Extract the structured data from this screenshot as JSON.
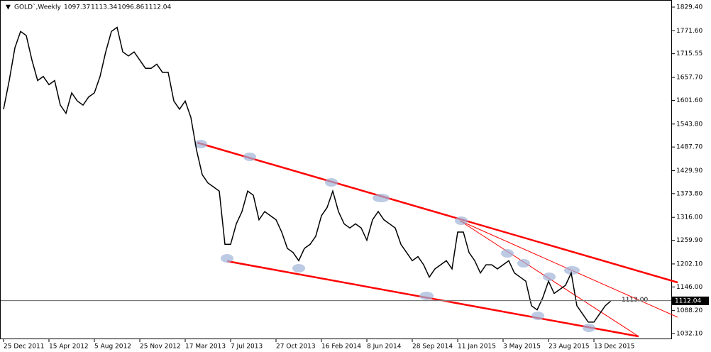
{
  "header": {
    "symbol": "GOLD`,Weekly",
    "open": 1097.37,
    "high": 1113.34,
    "low": 1096.86,
    "close": 1112.04
  },
  "chart_data": {
    "type": "line",
    "categories": [
      "25 Dec 2011",
      null,
      null,
      null,
      null,
      null,
      null,
      null,
      "15 Apr 2012",
      null,
      null,
      null,
      null,
      null,
      null,
      null,
      "5 Aug 2012",
      null,
      null,
      null,
      null,
      null,
      null,
      null,
      "25 Nov 2012",
      null,
      null,
      null,
      null,
      null,
      null,
      null,
      "17 Mar 2013",
      null,
      null,
      null,
      null,
      null,
      null,
      null,
      "7 Jul 2013",
      null,
      null,
      null,
      null,
      null,
      null,
      null,
      "27 Oct 2013",
      null,
      null,
      null,
      null,
      null,
      null,
      null,
      "16 Feb 2014",
      null,
      null,
      null,
      null,
      null,
      null,
      null,
      "8 Jun 2014",
      null,
      null,
      null,
      null,
      null,
      null,
      null,
      "28 Sep 2014",
      null,
      null,
      null,
      null,
      null,
      null,
      null,
      "11 Jan 2015",
      null,
      null,
      null,
      null,
      null,
      null,
      null,
      "3 May 2015",
      null,
      null,
      null,
      null,
      null,
      null,
      null,
      "23 Aug 2015",
      null,
      null,
      null,
      null,
      null,
      null,
      null,
      "13 Dec 2015",
      null,
      null,
      null
    ],
    "series": [
      {
        "name": "GOLD",
        "color": "#000000",
        "values": [
          1580,
          1650,
          1730,
          1770,
          1760,
          1700,
          1650,
          1660,
          1640,
          1650,
          1590,
          1570,
          1620,
          1600,
          1590,
          1610,
          1620,
          1660,
          1720,
          1770,
          1780,
          1720,
          1710,
          1720,
          1700,
          1680,
          1680,
          1690,
          1670,
          1670,
          1600,
          1580,
          1600,
          1560,
          1480,
          1420,
          1400,
          1390,
          1380,
          1250,
          1250,
          1300,
          1330,
          1380,
          1370,
          1310,
          1330,
          1320,
          1310,
          1280,
          1240,
          1230,
          1210,
          1240,
          1250,
          1270,
          1320,
          1340,
          1380,
          1330,
          1300,
          1290,
          1300,
          1290,
          1260,
          1310,
          1330,
          1310,
          1300,
          1290,
          1250,
          1230,
          1210,
          1220,
          1200,
          1170,
          1190,
          1200,
          1210,
          1190,
          1280,
          1280,
          1230,
          1210,
          1180,
          1200,
          1200,
          1190,
          1200,
          1210,
          1180,
          1170,
          1160,
          1100,
          1090,
          1120,
          1160,
          1130,
          1140,
          1150,
          1180,
          1100,
          1080,
          1060,
          1060,
          1080,
          1100,
          1112.04
        ]
      }
    ],
    "ylim": [
      1032.1,
      1829.4
    ],
    "yticks": [
      {
        "value": 1829.4,
        "label": "1829.40"
      },
      {
        "value": 1771.6,
        "label": "1771.60"
      },
      {
        "value": 1715.55,
        "label": "1715.55"
      },
      {
        "value": 1657.7,
        "label": "1657.70"
      },
      {
        "value": 1601.6,
        "label": "1601.60"
      },
      {
        "value": 1543.8,
        "label": "1543.80"
      },
      {
        "value": 1487.7,
        "label": "1487.70"
      },
      {
        "value": 1429.9,
        "label": "1429.90"
      },
      {
        "value": 1373.8,
        "label": "1373.80"
      },
      {
        "value": 1316.0,
        "label": "1316.00"
      },
      {
        "value": 1259.9,
        "label": "1259.90"
      },
      {
        "value": 1202.1,
        "label": "1202.10"
      },
      {
        "value": 1146.0,
        "label": "1146.00"
      },
      {
        "value": 1088.2,
        "label": "1088.20"
      },
      {
        "value": 1032.1,
        "label": "1032.10"
      }
    ],
    "hline": {
      "value": 1113.0,
      "label": "1113.00",
      "color": "#000000"
    },
    "trendline_color": "#ff0000"
  }
}
